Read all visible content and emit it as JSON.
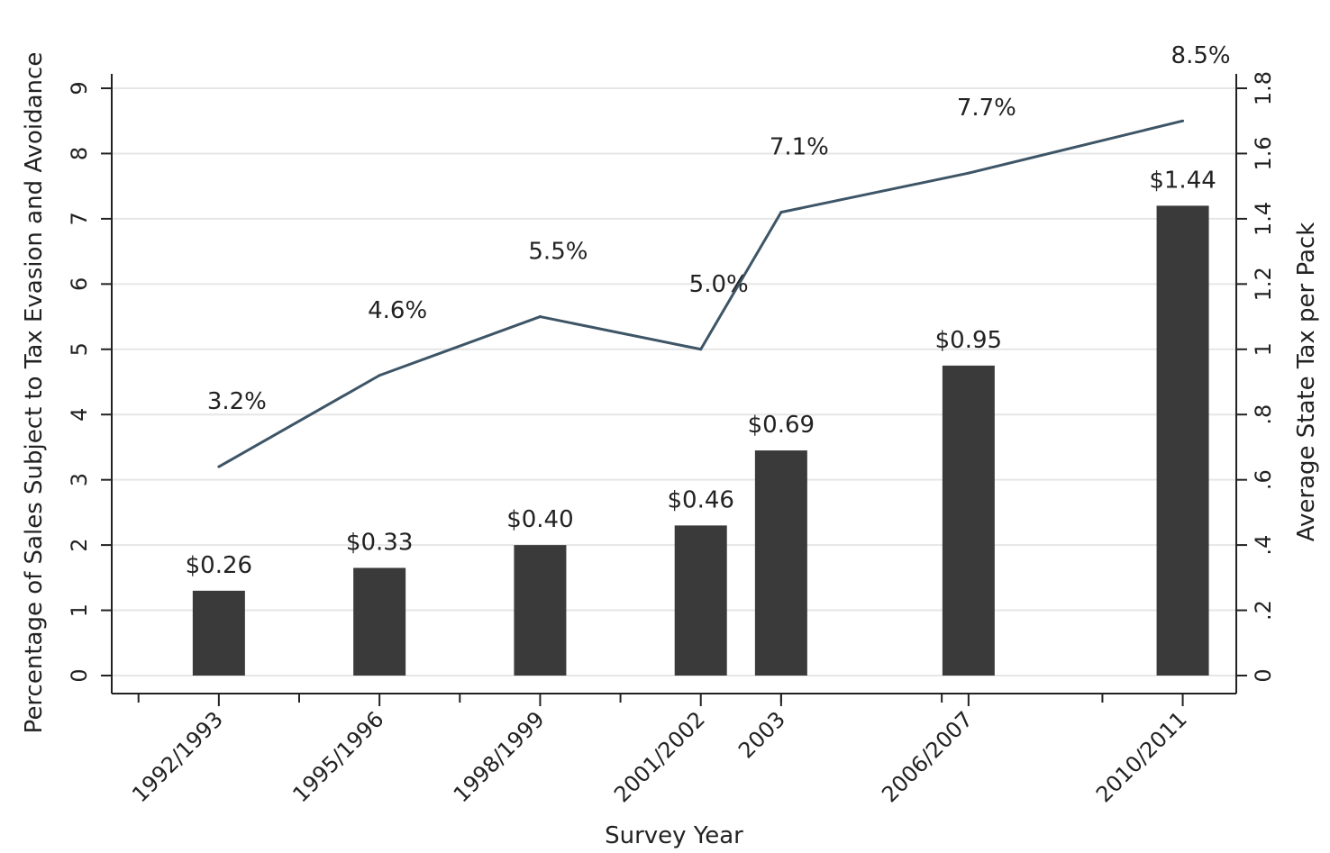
{
  "chart_data": {
    "type": "bar",
    "x": [
      1992.5,
      1995.5,
      1998.5,
      2001.5,
      2003,
      2006.5,
      2010.5
    ],
    "categories": [
      "1992/1993",
      "1995/1996",
      "1998/1999",
      "2001/2002",
      "2003",
      "2006/2007",
      "2010/2011"
    ],
    "xlim": [
      1990.5,
      2011.5
    ],
    "xlabel": "Survey Year",
    "ylabel": "Percentage of Sales Subject to Tax Evasion and Avoidance",
    "ylabel_right": "Average State Tax per Pack",
    "ylim_left": [
      0,
      9
    ],
    "ylim_right": [
      0,
      1.8
    ],
    "yticks_left": [
      "0",
      "1",
      "2",
      "3",
      "4",
      "5",
      "6",
      "7",
      "8",
      "9"
    ],
    "yticks_right": [
      "0",
      ".2",
      ".4",
      ".6",
      ".8",
      "1",
      "1.2",
      "1.4",
      "1.6",
      "1.8"
    ],
    "grid": true,
    "series": [
      {
        "type": "bar",
        "axis": "right",
        "color": "#3a3a3a",
        "values": [
          0.26,
          0.33,
          0.4,
          0.46,
          0.69,
          0.95,
          1.44
        ],
        "labels": [
          "$0.26",
          "$0.33",
          "$0.40",
          "$0.46",
          "$0.69",
          "$0.95",
          "$1.44"
        ]
      },
      {
        "type": "line",
        "axis": "left",
        "color": "#3d5566",
        "values": [
          3.2,
          4.6,
          5.5,
          5.0,
          7.1,
          7.7,
          8.5
        ],
        "labels": [
          "3.2%",
          "4.6%",
          "5.5%",
          "5.0%",
          "7.1%",
          "7.7%",
          "8.5%"
        ]
      }
    ]
  }
}
